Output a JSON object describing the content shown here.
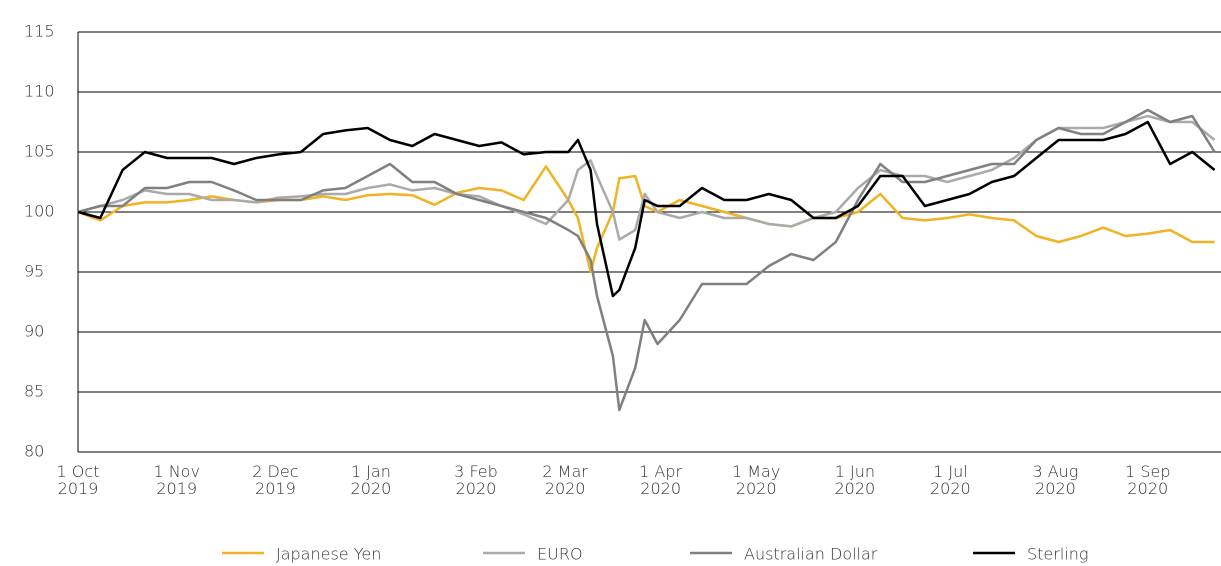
{
  "chart_data": {
    "type": "line",
    "x": [
      "2019-10-01",
      "2019-10-08",
      "2019-10-15",
      "2019-10-22",
      "2019-10-29",
      "2019-11-05",
      "2019-11-12",
      "2019-11-19",
      "2019-11-26",
      "2019-12-03",
      "2019-12-10",
      "2019-12-17",
      "2019-12-24",
      "2019-12-31",
      "2020-01-07",
      "2020-01-14",
      "2020-01-21",
      "2020-01-28",
      "2020-02-04",
      "2020-02-11",
      "2020-02-18",
      "2020-02-25",
      "2020-03-03",
      "2020-03-06",
      "2020-03-10",
      "2020-03-12",
      "2020-03-17",
      "2020-03-19",
      "2020-03-24",
      "2020-03-27",
      "2020-03-31",
      "2020-04-07",
      "2020-04-14",
      "2020-04-21",
      "2020-04-28",
      "2020-05-05",
      "2020-05-12",
      "2020-05-19",
      "2020-05-26",
      "2020-06-02",
      "2020-06-09",
      "2020-06-16",
      "2020-06-23",
      "2020-06-30",
      "2020-07-07",
      "2020-07-14",
      "2020-07-21",
      "2020-07-28",
      "2020-08-04",
      "2020-08-11",
      "2020-08-18",
      "2020-08-25",
      "2020-09-01",
      "2020-09-08",
      "2020-09-15",
      "2020-09-22"
    ],
    "series": [
      {
        "name": "Japanese Yen",
        "color": "#f0b323",
        "values": [
          100,
          99.3,
          100.5,
          100.8,
          100.8,
          101,
          101.3,
          101,
          100.8,
          101,
          101,
          101.3,
          101,
          101.4,
          101.5,
          101.4,
          100.6,
          101.6,
          102,
          101.8,
          101,
          103.8,
          101,
          99.5,
          95,
          97,
          100,
          102.8,
          103,
          100.5,
          100,
          101,
          100.5,
          100,
          99.5,
          99,
          98.8,
          99.5,
          99.5,
          100,
          101.5,
          99.5,
          99.3,
          99.5,
          99.8,
          99.5,
          99.3,
          98,
          97.5,
          98,
          98.7,
          98,
          98.2,
          98.5,
          97.5,
          97.5
        ]
      },
      {
        "name": "EURO",
        "color": "#aaaaaa",
        "values": [
          100,
          100.5,
          101,
          101.8,
          101.5,
          101.5,
          101,
          101,
          100.8,
          101.2,
          101.3,
          101.5,
          101.5,
          102,
          102.3,
          101.8,
          102,
          101.5,
          101.3,
          100.5,
          99.8,
          99,
          101,
          103.5,
          104.3,
          103,
          100,
          97.7,
          98.5,
          101.5,
          100,
          99.5,
          100,
          99.5,
          99.5,
          99,
          98.8,
          99.5,
          100,
          102,
          103.5,
          103,
          103,
          102.5,
          103,
          103.5,
          104.5,
          106,
          107,
          107,
          107,
          107.5,
          108,
          107.5,
          107.5,
          106
        ]
      },
      {
        "name": "Australian Dollar",
        "color": "#808080",
        "values": [
          100,
          100.5,
          100.5,
          102,
          102,
          102.5,
          102.5,
          101.8,
          101,
          101,
          101,
          101.8,
          102,
          103,
          104,
          102.5,
          102.5,
          101.5,
          101,
          100.5,
          100,
          99.5,
          98.5,
          98,
          96,
          93,
          88,
          83.5,
          87,
          91,
          89,
          91,
          94,
          94,
          94,
          95.5,
          96.5,
          96,
          97.5,
          101,
          104,
          102.5,
          102.5,
          103,
          103.5,
          104,
          104,
          106,
          107,
          106.5,
          106.5,
          107.5,
          108.5,
          107.5,
          108,
          105
        ]
      },
      {
        "name": "Sterling",
        "color": "#000000",
        "values": [
          100,
          99.5,
          103.5,
          105,
          104.5,
          104.5,
          104.5,
          104,
          104.5,
          104.8,
          105,
          106.5,
          106.8,
          107,
          106,
          105.5,
          106.5,
          106,
          105.5,
          105.8,
          104.8,
          105,
          105,
          106,
          103.5,
          99,
          93,
          93.5,
          97,
          101,
          100.5,
          100.5,
          102,
          101,
          101,
          101.5,
          101,
          99.5,
          99.5,
          100.5,
          103,
          103,
          100.5,
          101,
          101.5,
          102.5,
          103,
          104.5,
          106,
          106,
          106,
          106.5,
          107.5,
          104,
          105,
          103.5
        ]
      }
    ],
    "xlim": [
      "2019-10-01",
      "2020-09-24"
    ],
    "xticks": [
      {
        "value": "2019-10-01",
        "label": "1 Oct 2019"
      },
      {
        "value": "2019-11-01",
        "label": "1 Nov 2019"
      },
      {
        "value": "2019-12-02",
        "label": "2 Dec 2019"
      },
      {
        "value": "2020-01-01",
        "label": "1 Jan 2020"
      },
      {
        "value": "2020-02-03",
        "label": "3 Feb 2020"
      },
      {
        "value": "2020-03-02",
        "label": "2 Mar 2020"
      },
      {
        "value": "2020-04-01",
        "label": "1 Apr 2020"
      },
      {
        "value": "2020-05-01",
        "label": "1 May 2020"
      },
      {
        "value": "2020-06-01",
        "label": "1 Jun 2020"
      },
      {
        "value": "2020-07-01",
        "label": "1 Jul 2020"
      },
      {
        "value": "2020-08-03",
        "label": "3 Aug 2020"
      },
      {
        "value": "2020-09-01",
        "label": "1 Sep 2020"
      }
    ],
    "ylim": [
      80,
      115
    ],
    "yticks": [
      80,
      85,
      90,
      95,
      100,
      105,
      110,
      115
    ],
    "grid": true
  }
}
